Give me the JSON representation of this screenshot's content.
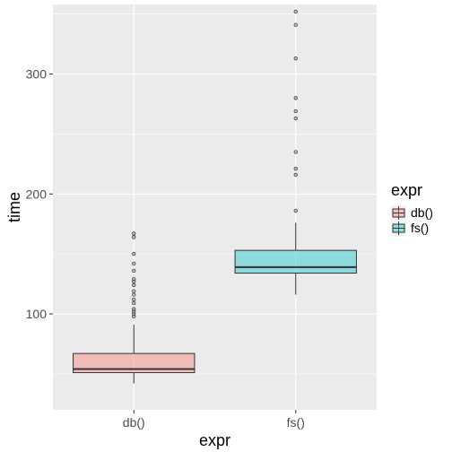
{
  "chart_data": {
    "type": "boxplot",
    "xlabel": "expr",
    "ylabel": "time",
    "ylim": [
      20,
      358
    ],
    "yticks": [
      100,
      200,
      300
    ],
    "grid": true,
    "legend": {
      "title": "expr",
      "position": "right",
      "entries": [
        "db()",
        "fs()"
      ]
    },
    "categories": [
      "db()",
      "fs()"
    ],
    "series": [
      {
        "category": "db()",
        "color": "#F8766D",
        "whisker_low": 42,
        "q1": 51,
        "median": 54,
        "q3": 67,
        "whisker_high": 91,
        "outliers": [
          98,
          100,
          102,
          104,
          109,
          112,
          116,
          119,
          124,
          127,
          129,
          136,
          142,
          150,
          164,
          167
        ]
      },
      {
        "category": "fs()",
        "color": "#00BFC4",
        "whisker_low": 116,
        "q1": 134,
        "median": 139,
        "q3": 153,
        "whisker_high": 176,
        "outliers": [
          186,
          216,
          221,
          235,
          263,
          269,
          280,
          313,
          341,
          352
        ]
      }
    ]
  }
}
